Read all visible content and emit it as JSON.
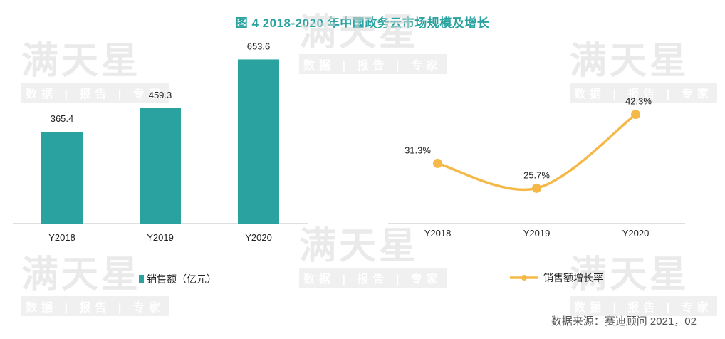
{
  "title": "图 4   2018-2020 年中国政务云市场规模及增长",
  "watermark": {
    "big": "满天星",
    "small": "数据 | 报告 | 专家"
  },
  "source": "数据来源：赛迪顾问   2021，02",
  "colors": {
    "bar": "#2aa3a0",
    "line": "#f5b94a",
    "title": "#2aa3a0"
  },
  "chart_data": [
    {
      "type": "bar",
      "categories": [
        "Y2018",
        "Y2019",
        "Y2020"
      ],
      "series": [
        {
          "name": "销售额（亿元）",
          "values": [
            365.4,
            459.3,
            653.6
          ]
        }
      ],
      "value_labels": [
        "365.4",
        "459.3",
        "653.6"
      ],
      "ylim": [
        0,
        720
      ],
      "legend": "bottom-left",
      "grid": false
    },
    {
      "type": "line",
      "categories": [
        "Y2018",
        "Y2019",
        "Y2020"
      ],
      "series": [
        {
          "name": "销售额增长率",
          "values": [
            31.3,
            25.7,
            42.3
          ]
        }
      ],
      "value_labels": [
        "31.3%",
        "25.7%",
        "42.3%"
      ],
      "ylim": [
        20,
        44
      ],
      "smooth": true,
      "legend": "bottom-center",
      "grid": false
    }
  ]
}
